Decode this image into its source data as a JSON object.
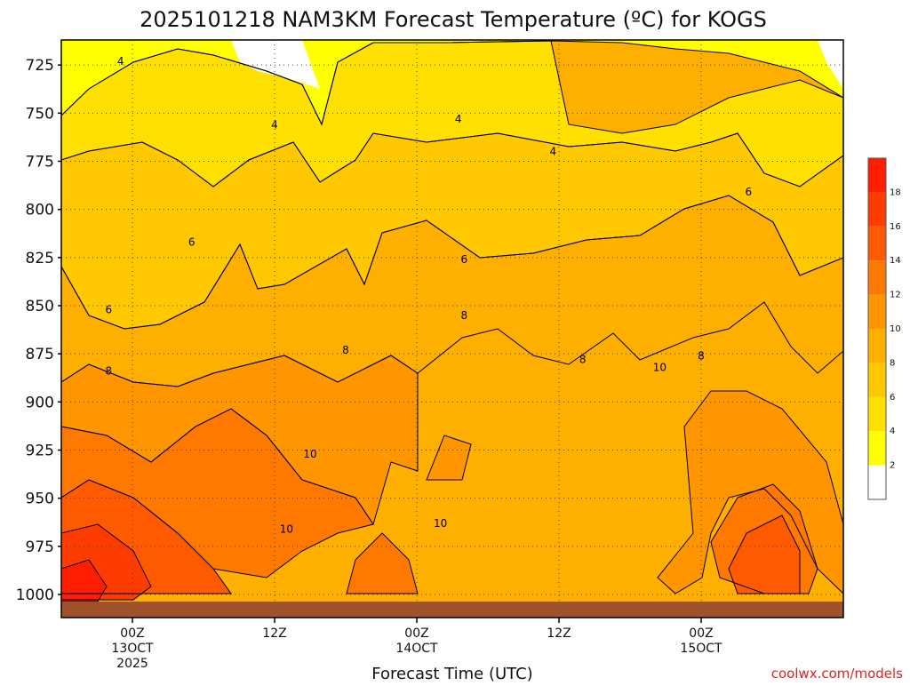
{
  "chart_data": {
    "type": "heatmap",
    "title": "2025101218 NAM3KM Forecast Temperature (ºC) for KOGS",
    "xlabel": "Forecast Time (UTC)",
    "ylabel": "",
    "y_axis": {
      "ticks": [
        "725",
        "750",
        "775",
        "800",
        "825",
        "850",
        "875",
        "900",
        "925",
        "950",
        "975",
        "1000"
      ],
      "range": [
        712,
        1012
      ],
      "inverted": true
    },
    "x_axis": {
      "ticks": [
        {
          "hour": 0,
          "labels": [
            "00Z",
            "13OCT",
            "2025"
          ]
        },
        {
          "hour": 12,
          "labels": [
            "12Z",
            "",
            ""
          ]
        },
        {
          "hour": 24,
          "labels": [
            "00Z",
            "14OCT",
            ""
          ]
        },
        {
          "hour": 36,
          "labels": [
            "12Z",
            "",
            ""
          ]
        },
        {
          "hour": 48,
          "labels": [
            "00Z",
            "15OCT",
            ""
          ]
        }
      ],
      "range": [
        -6,
        60
      ]
    },
    "grid": true,
    "colorbar": {
      "placement": "right",
      "levels": [
        {
          "value": 2,
          "label": "2",
          "color": "#ffff00"
        },
        {
          "value": 4,
          "label": "4",
          "color": "#ffe000"
        },
        {
          "value": 6,
          "label": "6",
          "color": "#ffc800"
        },
        {
          "value": 8,
          "label": "8",
          "color": "#ffaf00"
        },
        {
          "value": 10,
          "label": "10",
          "color": "#ff9600"
        },
        {
          "value": 12,
          "label": "12",
          "color": "#ff7800"
        },
        {
          "value": 14,
          "label": "14",
          "color": "#ff5a00"
        },
        {
          "value": 16,
          "label": "16",
          "color": "#ff3c00"
        },
        {
          "value": 18,
          "label": "18",
          "color": "#ff1e00"
        }
      ]
    },
    "contour_labels": [
      {
        "text": "4",
        "hour": -1,
        "p": 723
      },
      {
        "text": "4",
        "hour": 12,
        "p": 756
      },
      {
        "text": "4",
        "hour": 27.5,
        "p": 753
      },
      {
        "text": "4",
        "hour": 35.5,
        "p": 770
      },
      {
        "text": "6",
        "hour": 5,
        "p": 817
      },
      {
        "text": "6",
        "hour": 28,
        "p": 826
      },
      {
        "text": "6",
        "hour": 52,
        "p": 791
      },
      {
        "text": "6",
        "hour": -2,
        "p": 852
      },
      {
        "text": "8",
        "hour": -2,
        "p": 884
      },
      {
        "text": "8",
        "hour": 18,
        "p": 873
      },
      {
        "text": "8",
        "hour": 28,
        "p": 855
      },
      {
        "text": "8",
        "hour": 38,
        "p": 878
      },
      {
        "text": "8",
        "hour": 48,
        "p": 876
      },
      {
        "text": "10",
        "hour": 44.5,
        "p": 882
      },
      {
        "text": "10",
        "hour": 15,
        "p": 927
      },
      {
        "text": "10",
        "hour": 13,
        "p": 966
      },
      {
        "text": "10",
        "hour": 26,
        "p": 963
      }
    ],
    "ground": {
      "color": "#a0522d"
    }
  },
  "credit": "coolwx.com/models"
}
